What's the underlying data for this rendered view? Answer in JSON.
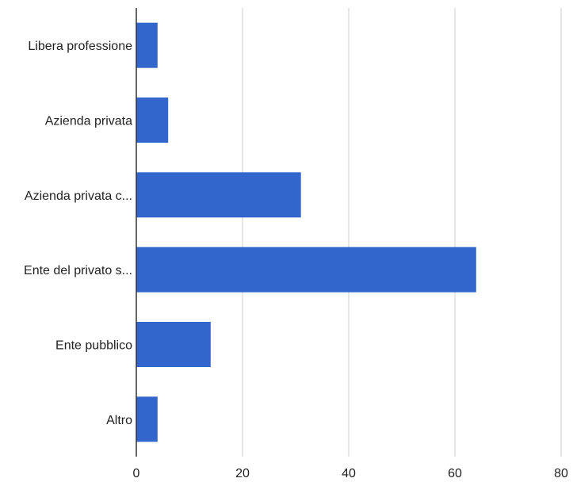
{
  "chart_data": {
    "type": "bar",
    "orientation": "horizontal",
    "categories": [
      "Libera professione",
      "Azienda privata",
      "Azienda privata c...",
      "Ente del privato s...",
      "Ente pubblico",
      "Altro"
    ],
    "values": [
      4,
      6,
      31,
      64,
      14,
      4
    ],
    "xlim": [
      0,
      80
    ],
    "x_ticks": [
      0,
      20,
      40,
      60,
      80
    ],
    "grid": true,
    "legend": "none",
    "bar_color": "#3366cc",
    "grid_color": "#cccccc",
    "axis_color": "#333333"
  }
}
